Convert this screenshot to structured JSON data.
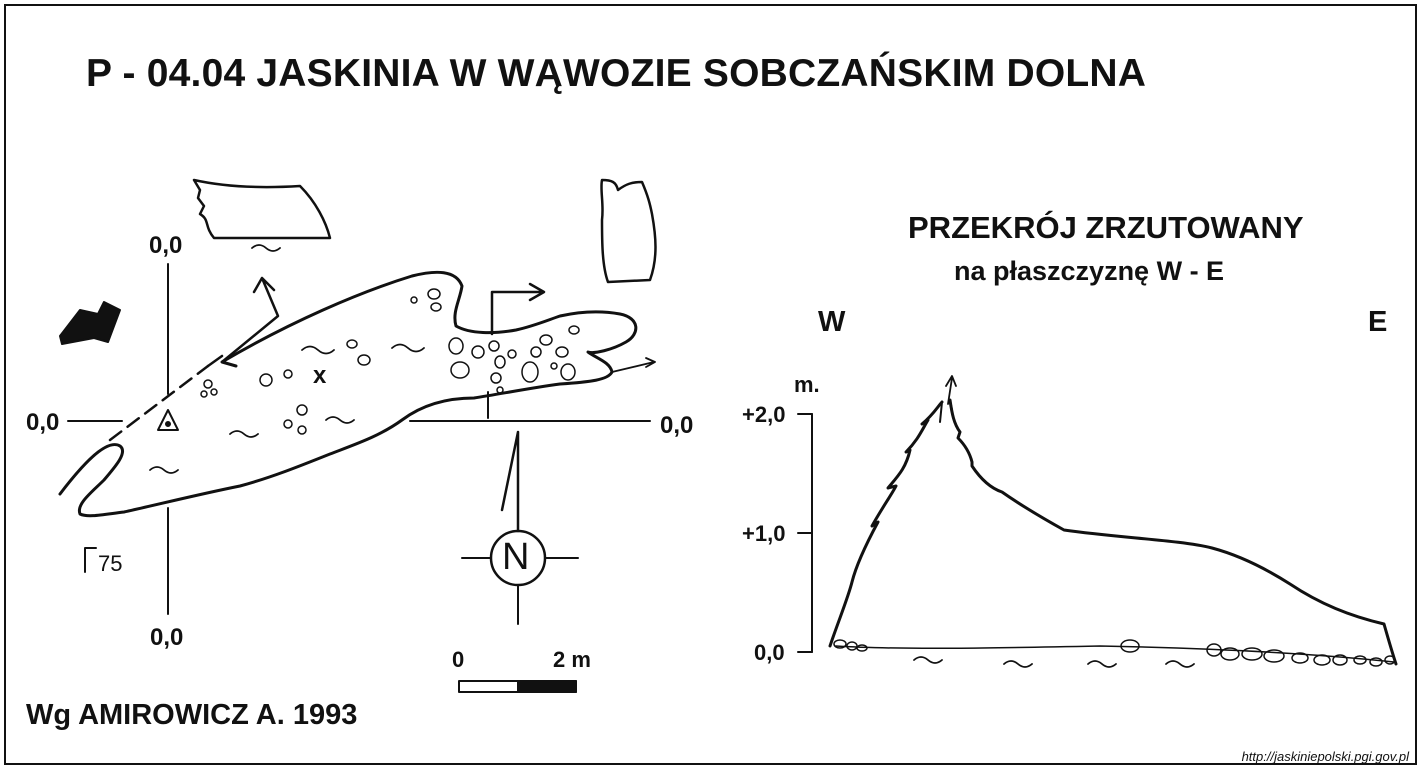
{
  "title": "P - 04.04  JASKINIA W WĄWOZIE SOBCZAŃSKIM DOLNA",
  "plan": {
    "axis_labels": {
      "top": "0,0",
      "left": "0,0",
      "right": "0,0",
      "bottom": "0,0"
    },
    "depth_label": "75",
    "point_marker": "x",
    "north_label": "N",
    "scale_labels": {
      "start": "0",
      "end": "2 m"
    }
  },
  "section": {
    "title": "PRZEKRÓJ ZRZUTOWANY",
    "subtitle": "na płaszczyznę W - E",
    "west": "W",
    "east": "E",
    "unit": "m.",
    "levels": [
      "+2,0",
      "+1,0",
      "0,0"
    ]
  },
  "author": "Wg AMIROWICZ A. 1993",
  "source_url": "http://jaskiniepolski.pgi.gov.pl"
}
